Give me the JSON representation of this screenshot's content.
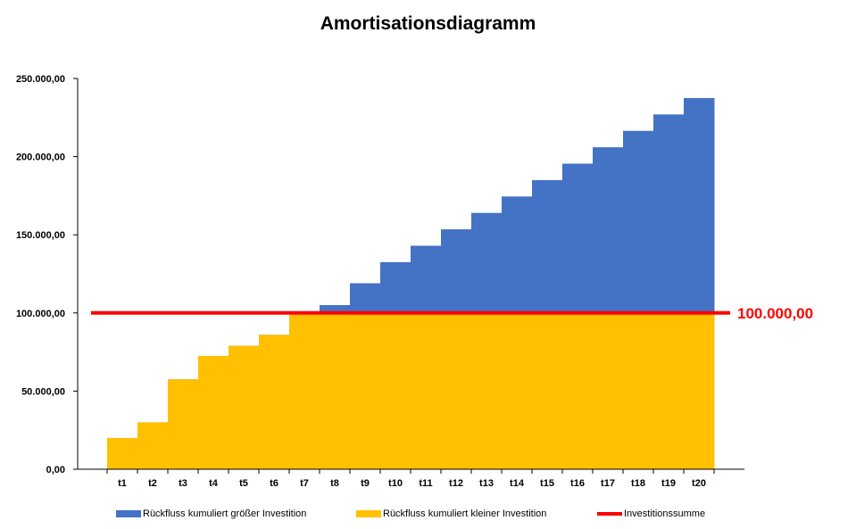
{
  "chart_data": {
    "type": "area",
    "title": "Amortisationsdiagramm",
    "xlabel": "",
    "ylabel": "",
    "categories": [
      "t1",
      "t2",
      "t3",
      "t4",
      "t5",
      "t6",
      "t7",
      "t8",
      "t9",
      "t10",
      "t11",
      "t12",
      "t13",
      "t14",
      "t15",
      "t16",
      "t17",
      "t18",
      "t19",
      "t20"
    ],
    "ylim": [
      0,
      250000
    ],
    "yticks": [
      0,
      50000,
      100000,
      150000,
      200000,
      250000
    ],
    "ytick_labels": [
      "0,00",
      "50.000,00",
      "100.000,00",
      "150.000,00",
      "200.000,00",
      "250.000,00"
    ],
    "series": [
      {
        "name": "Rückfluss kumuliert größer Investition",
        "color": "#4472C4",
        "values": [
          20000,
          30000,
          57500,
          72500,
          79000,
          86000,
          100000,
          105000,
          119000,
          132500,
          143000,
          153500,
          164000,
          174500,
          185000,
          195500,
          206000,
          216500,
          227000,
          237500
        ]
      },
      {
        "name": "Rückfluss kumuliert kleiner Investition",
        "color": "#FFC000",
        "values": [
          20000,
          30000,
          57500,
          72500,
          79000,
          86000,
          100000,
          100000,
          100000,
          100000,
          100000,
          100000,
          100000,
          100000,
          100000,
          100000,
          100000,
          100000,
          100000,
          100000
        ]
      }
    ],
    "reference_line": {
      "name": "Investitionssumme",
      "value": 100000,
      "label": "100.000,00",
      "color": "#FF0000"
    },
    "grid": false,
    "legend_position": "bottom"
  }
}
